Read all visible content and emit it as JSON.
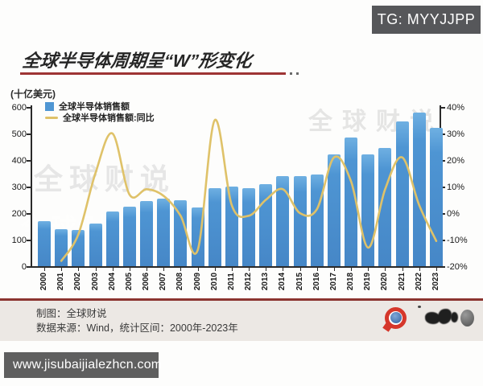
{
  "badge": {
    "label": "TG: MYYJJPP"
  },
  "title": {
    "text": "全球半导体周期呈“W”形变化"
  },
  "unit_label": "(十亿美元)",
  "watermark_text": "全球财说",
  "legend": {
    "sales": "全球半导体销售额",
    "yoy": "全球半导体销售额:同比"
  },
  "footer": {
    "credit": "制图：全球财说",
    "source": "数据来源：Wind，统计区间：2000年-2023年"
  },
  "bottom_bar": {
    "url": "www.jisubaijialezhcn.com"
  },
  "colors": {
    "bar": "#4f96d3",
    "line": "#dfc269",
    "accent_red": "#9e3434",
    "badge_bg": "#56575a",
    "footer_bg": "#ece8e4",
    "url_bg": "#5f5f5f"
  },
  "chart_data": {
    "type": "bar",
    "title": "全球半导体周期呈“W”形变化",
    "categories": [
      "2000",
      "2001",
      "2002",
      "2003",
      "2004",
      "2005",
      "2006",
      "2007",
      "2008",
      "2009",
      "2010",
      "2011",
      "2012",
      "2013",
      "2014",
      "2015",
      "2016",
      "2017",
      "2018",
      "2019",
      "2020",
      "2021",
      "2022",
      "2023"
    ],
    "series": [
      {
        "name": "全球半导体销售额",
        "type": "bar",
        "axis": "left",
        "values": [
          170,
          140,
          135,
          160,
          205,
          225,
          245,
          255,
          250,
          220,
          295,
          300,
          295,
          310,
          340,
          340,
          345,
          420,
          485,
          420,
          445,
          545,
          580,
          520
        ]
      },
      {
        "name": "全球半导体销售额:同比",
        "type": "line",
        "axis": "right",
        "values": [
          null,
          -18,
          -8,
          15,
          30,
          7,
          9,
          6.5,
          -1,
          -14,
          35,
          3,
          -1,
          5,
          9,
          0,
          1.5,
          21,
          12,
          -13,
          9,
          21,
          3,
          -10.5
        ]
      }
    ],
    "left_axis": {
      "label": "十亿美元",
      "min": 0,
      "max": 600,
      "step": 100,
      "tick_labels": [
        "0",
        "100",
        "200",
        "300",
        "400",
        "500",
        "600"
      ]
    },
    "right_axis": {
      "min": -20,
      "max": 40,
      "step": 10,
      "format": "percent",
      "tick_labels": [
        "-20%",
        "-10%",
        "0%",
        "10%",
        "20%",
        "30%",
        "40%"
      ]
    },
    "legend_position": "top-left",
    "grid": false
  }
}
